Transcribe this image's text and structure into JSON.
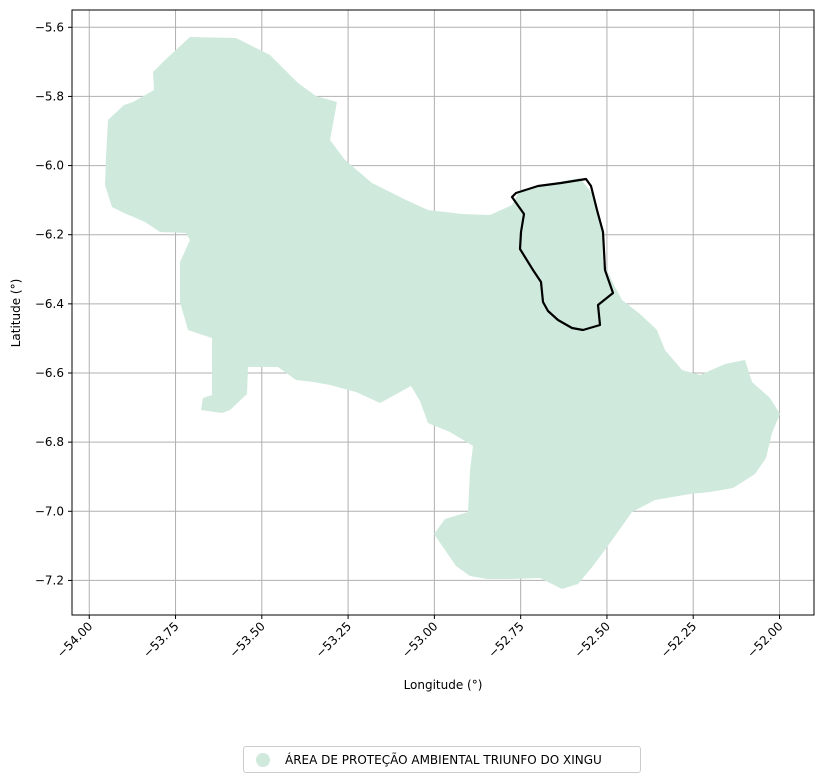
{
  "map": {
    "xlabel": "Longitude (°)",
    "ylabel": "Latitude (°)",
    "xlim": [
      -54.05,
      -51.9
    ],
    "ylim": [
      -7.3,
      -5.55
    ],
    "xticks": [
      "−54.00",
      "−53.75",
      "−53.50",
      "−53.25",
      "−53.00",
      "−52.75",
      "−52.50",
      "−52.25",
      "−52.00"
    ],
    "yticks": [
      "−5.6",
      "−5.8",
      "−6.0",
      "−6.2",
      "−6.4",
      "−6.6",
      "−6.8",
      "−7.0",
      "−7.2"
    ],
    "grid": true,
    "fill_color": "#cfeadc",
    "outline_color": "#000000",
    "grid_color": "#b0b0b0"
  },
  "legend": {
    "label": "ÁREA DE PROTEÇÃO AMBIENTAL TRIUNFO DO XINGU",
    "marker_color": "#cfeadc",
    "placement": "bottom-center"
  }
}
